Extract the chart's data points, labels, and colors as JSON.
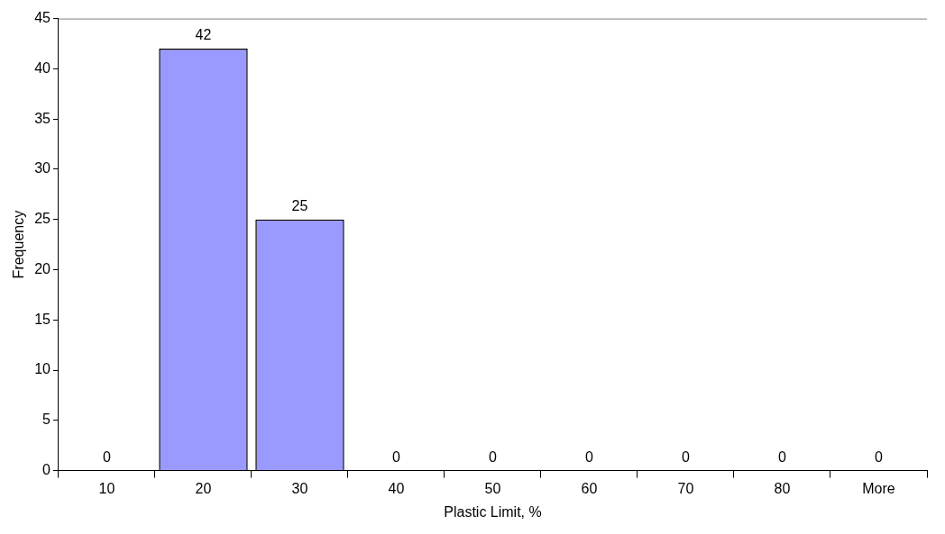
{
  "chart_data": {
    "type": "bar",
    "xlabel": "Plastic Limit, %",
    "ylabel": "Frequency",
    "categories": [
      "10",
      "20",
      "30",
      "40",
      "50",
      "60",
      "70",
      "80",
      "More"
    ],
    "values": [
      0,
      42,
      25,
      0,
      0,
      0,
      0,
      0,
      0
    ],
    "color": "#9999ff",
    "ylim": [
      0,
      45
    ],
    "yticks": [
      0,
      5,
      10,
      15,
      20,
      25,
      30,
      35,
      40,
      45
    ],
    "grid": false,
    "legend": false,
    "data_labels": true
  }
}
